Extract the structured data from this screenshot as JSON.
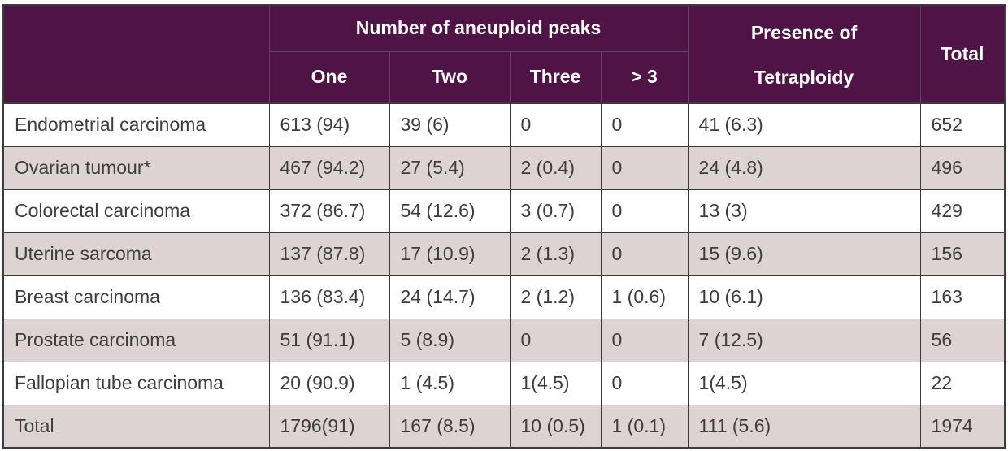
{
  "colors": {
    "header_bg": "#4f1445",
    "header_text": "#ffffff",
    "header_grid": "#5a495e",
    "row_bg": "#ffffff",
    "row_alt_bg": "#ddd3d3",
    "body_text": "#3d3d3d",
    "grid_border": "#3c3c3c"
  },
  "header": {
    "presence_line1": "Presence of",
    "presence_line2": "Tetraploidy"
  },
  "chart_data": {
    "type": "table",
    "title": "",
    "column_groups": [
      {
        "label": "",
        "span": 1
      },
      {
        "label": "Number of aneuploid peaks",
        "span": 4
      },
      {
        "label": "Presence of Tetraploidy",
        "span": 1
      },
      {
        "label": "Total",
        "span": 1
      }
    ],
    "sub_columns": [
      "One",
      "Two",
      "Three",
      "> 3"
    ],
    "columns": [
      "",
      "One",
      "Two",
      "Three",
      "> 3",
      "Presence of Tetraploidy",
      "Total"
    ],
    "rows": [
      {
        "label": "Endometrial carcinoma",
        "cells": [
          "613 (94)",
          "39 (6)",
          "0",
          "0",
          "41 (6.3)",
          "652"
        ]
      },
      {
        "label": "Ovarian tumour*",
        "cells": [
          "467 (94.2)",
          "27 (5.4)",
          "2 (0.4)",
          "0",
          "24 (4.8)",
          "496"
        ]
      },
      {
        "label": "Colorectal carcinoma",
        "cells": [
          "372 (86.7)",
          "54 (12.6)",
          "3 (0.7)",
          "0",
          "13 (3)",
          "429"
        ]
      },
      {
        "label": "Uterine sarcoma",
        "cells": [
          "137 (87.8)",
          "17 (10.9)",
          "2 (1.3)",
          "0",
          "15 (9.6)",
          "156"
        ]
      },
      {
        "label": "Breast carcinoma",
        "cells": [
          "136 (83.4)",
          "24 (14.7)",
          "2 (1.2)",
          "1 (0.6)",
          "10 (6.1)",
          "163"
        ]
      },
      {
        "label": "Prostate carcinoma",
        "cells": [
          "51 (91.1)",
          "5 (8.9)",
          "0",
          "0",
          "7 (12.5)",
          "56"
        ]
      },
      {
        "label": "Fallopian tube carcinoma",
        "cells": [
          "20 (90.9)",
          "1 (4.5)",
          "1(4.5)",
          "0",
          "1(4.5)",
          "22"
        ]
      },
      {
        "label": "Total",
        "cells": [
          "1796(91)",
          "167 (8.5)",
          "10 (0.5)",
          "1 (0.1)",
          "111 (5.6)",
          "1974"
        ]
      }
    ]
  }
}
